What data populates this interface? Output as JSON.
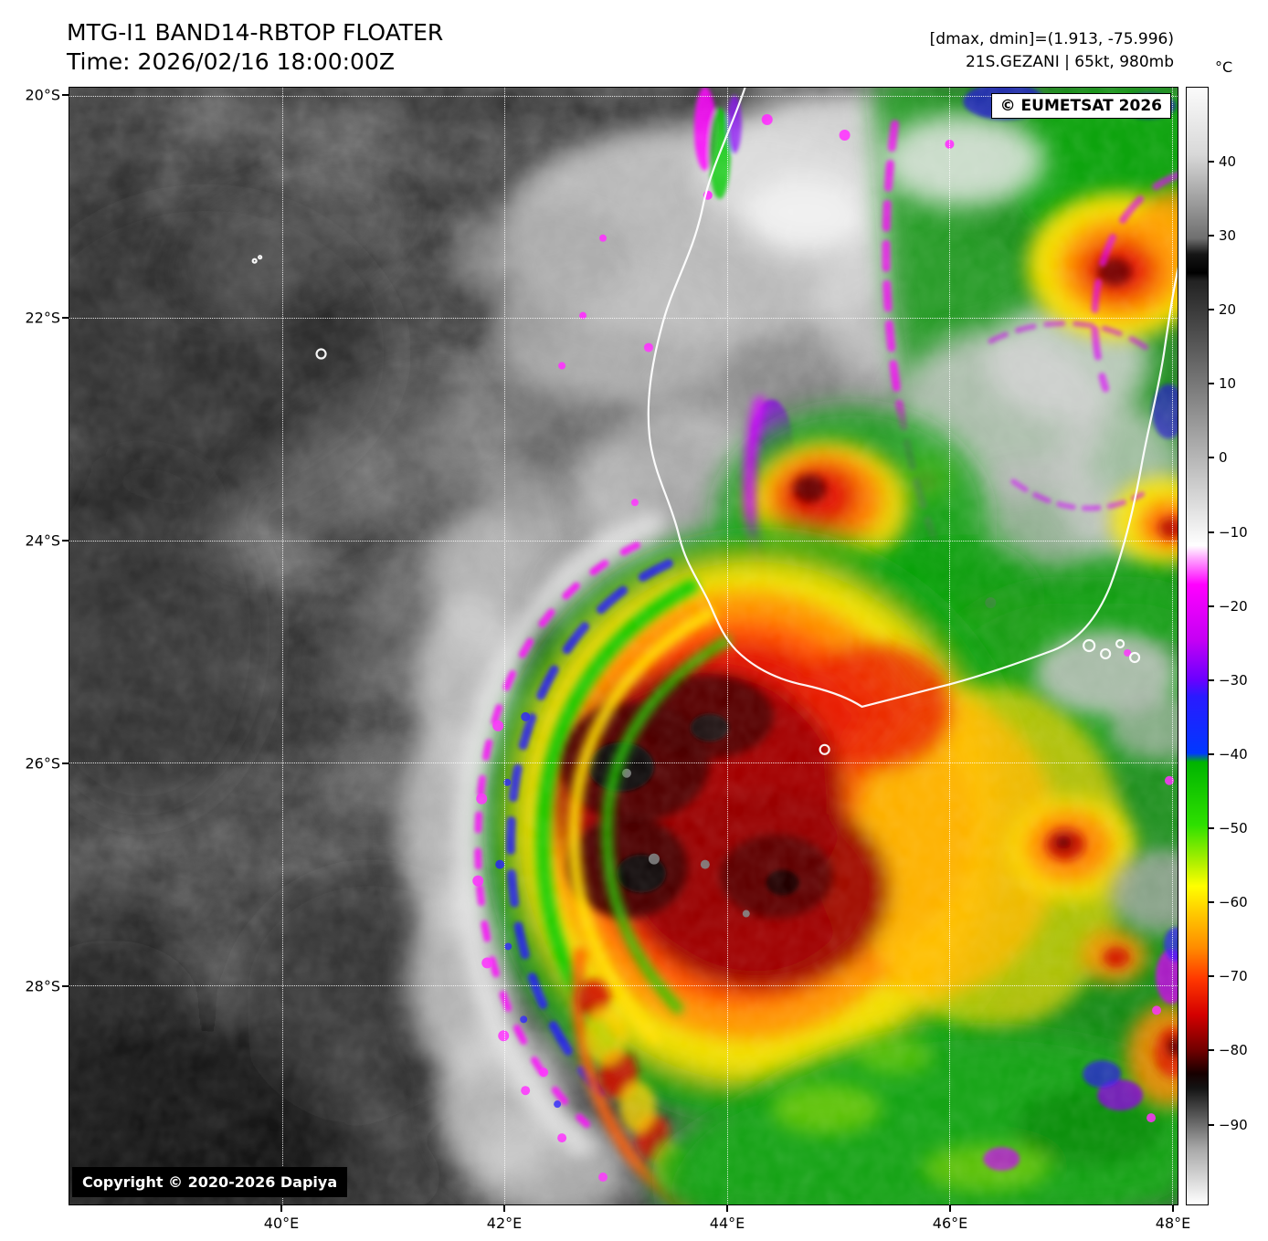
{
  "header": {
    "title": "MTG-I1 BAND14-RBTOP FLOATER",
    "time": "Time: 2026/02/16 18:00:00Z",
    "range_info": "[dmax, dmin]=(1.913, -75.996)",
    "storm_info": "21S.GEZANI | 65kt, 980mb"
  },
  "overlays": {
    "eumetsat_credit": "© EUMETSAT 2026",
    "dapiya_credit": "Copyright © 2020-2026 Dapiya"
  },
  "axes": {
    "lat_ticks": [
      {
        "label": "20°S",
        "value": 20
      },
      {
        "label": "22°S",
        "value": 22
      },
      {
        "label": "24°S",
        "value": 24
      },
      {
        "label": "26°S",
        "value": 26
      },
      {
        "label": "28°S",
        "value": 28
      }
    ],
    "lon_ticks": [
      {
        "label": "40°E",
        "value": 40
      },
      {
        "label": "42°E",
        "value": 42
      },
      {
        "label": "44°E",
        "value": 44
      },
      {
        "label": "46°E",
        "value": 46
      },
      {
        "label": "48°E",
        "value": 48
      }
    ]
  },
  "colorbar": {
    "unit": "°C",
    "ticks": [
      {
        "label": "40",
        "value": 40
      },
      {
        "label": "30",
        "value": 30
      },
      {
        "label": "20",
        "value": 20
      },
      {
        "label": "10",
        "value": 10
      },
      {
        "label": "0",
        "value": 0
      },
      {
        "label": "−10",
        "value": -10
      },
      {
        "label": "−20",
        "value": -20
      },
      {
        "label": "−30",
        "value": -30
      },
      {
        "label": "−40",
        "value": -40
      },
      {
        "label": "−50",
        "value": -50
      },
      {
        "label": "−60",
        "value": -60
      },
      {
        "label": "−70",
        "value": -70
      },
      {
        "label": "−80",
        "value": -80
      },
      {
        "label": "−90",
        "value": -90
      }
    ],
    "stops": [
      {
        "pct": 0,
        "color": "#fbfbfb"
      },
      {
        "pct": 6,
        "color": "#d8d8d8"
      },
      {
        "pct": 13.5,
        "color": "#6f6f6f"
      },
      {
        "pct": 14.9,
        "color": "#161616"
      },
      {
        "pct": 16.6,
        "color": "#000000"
      },
      {
        "pct": 17.3,
        "color": "#222222"
      },
      {
        "pct": 41.0,
        "color": "#ffffff"
      },
      {
        "pct": 42.1,
        "color": "#ffaaff"
      },
      {
        "pct": 44.5,
        "color": "#ff00ff"
      },
      {
        "pct": 49.5,
        "color": "#c400f4"
      },
      {
        "pct": 53.0,
        "color": "#6a00ff"
      },
      {
        "pct": 54.5,
        "color": "#2a1aff"
      },
      {
        "pct": 59.6,
        "color": "#0038ff"
      },
      {
        "pct": 60.4,
        "color": "#00b400"
      },
      {
        "pct": 66.0,
        "color": "#2ee000"
      },
      {
        "pct": 69.5,
        "color": "#b4f000"
      },
      {
        "pct": 71.5,
        "color": "#ffff00"
      },
      {
        "pct": 74.0,
        "color": "#ffc800"
      },
      {
        "pct": 77.0,
        "color": "#ff8c00"
      },
      {
        "pct": 79.8,
        "color": "#ff3800"
      },
      {
        "pct": 83.0,
        "color": "#d40000"
      },
      {
        "pct": 86.2,
        "color": "#700000"
      },
      {
        "pct": 88.3,
        "color": "#160000"
      },
      {
        "pct": 89.6,
        "color": "#141414"
      },
      {
        "pct": 95.0,
        "color": "#a8a8a8"
      },
      {
        "pct": 100,
        "color": "#ffffff"
      }
    ]
  }
}
